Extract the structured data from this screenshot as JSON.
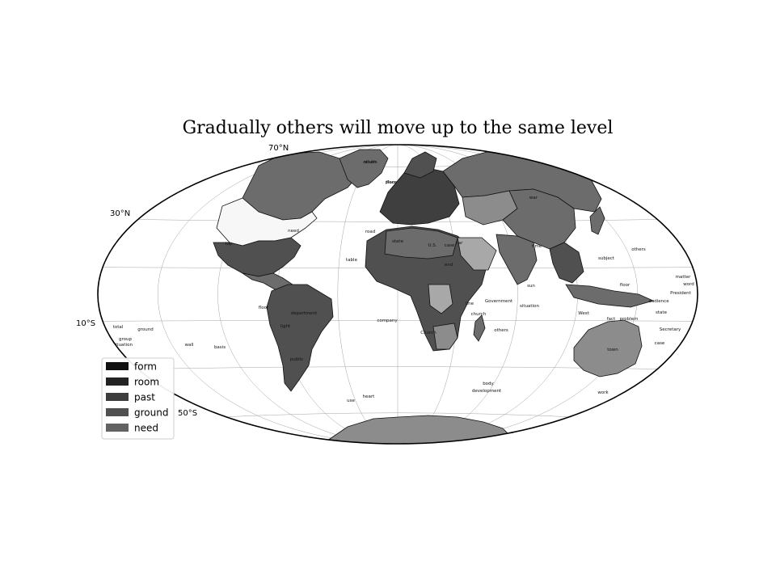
{
  "title": "Gradually others will move up to the same level",
  "lat_labels": [
    "70°N",
    "30°N",
    "10°S",
    "50°S"
  ],
  "legend": [
    {
      "label": "form",
      "color": "#111111"
    },
    {
      "label": "room",
      "color": "#222222"
    },
    {
      "label": "past",
      "color": "#3d3d3d"
    },
    {
      "label": "ground",
      "color": "#505050"
    },
    {
      "label": "need",
      "color": "#626262"
    }
  ],
  "colors": {
    "ocean": "#ffffff",
    "land_dark": "#3f3f3f",
    "land_mid": "#6c6c6c",
    "land_light": "#8c8c8c",
    "land_pale": "#a8a8a8",
    "land_white": "#f7f7f7"
  },
  "map_labels": [
    "south",
    "place",
    "need",
    "road",
    "state",
    "U.S.",
    "case",
    "car",
    "top",
    "table",
    "company",
    "others",
    "sun",
    "end",
    "church",
    "Government",
    "situation",
    "West",
    "fact",
    "town",
    "case",
    "state",
    "President",
    "word",
    "matter",
    "subject",
    "Secretary",
    "floor",
    "others",
    "body",
    "development",
    "use",
    "heart",
    "wall",
    "basis",
    "ground",
    "total",
    "group",
    "situation",
    "light",
    "department",
    "floor",
    "public",
    "time",
    "war",
    "Church",
    "line",
    "audience",
    "problem",
    "work",
    "others",
    "floor"
  ]
}
